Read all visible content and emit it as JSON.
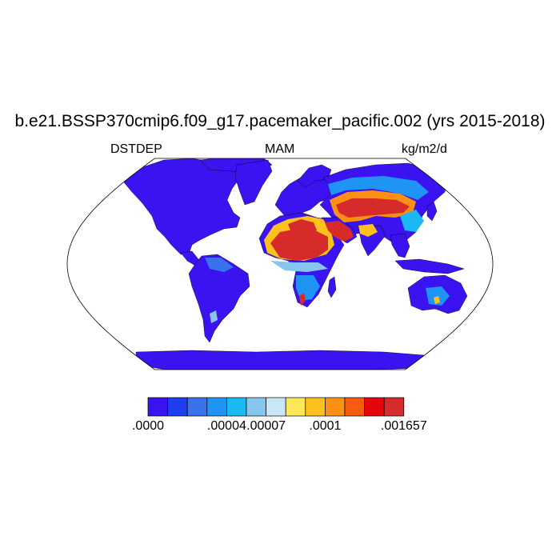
{
  "title": "b.e21.BSSP370cmip6.f09_g17.pacemaker_pacific.002 (yrs 2015-2018)",
  "left_label": "DSTDEP",
  "center_label": "MAM",
  "units": "kg/m2/d",
  "colors": {
    "ocean": "#ffffff",
    "land_low": "#3b12f0",
    "outline": "#000000"
  },
  "colorbar": {
    "colors": [
      "#3b12f0",
      "#1f3ef0",
      "#3a71ec",
      "#1e94f5",
      "#1ab9f3",
      "#86c6ee",
      "#c9e6f6",
      "#fde85a",
      "#fdc11d",
      "#fc9012",
      "#f85a10",
      "#e4060a",
      "#d72a2a"
    ],
    "labels": [
      {
        "text": ".0000",
        "index": 0
      },
      {
        "text": ".00004",
        "index": 4
      },
      {
        "text": ".00007",
        "index": 6
      },
      {
        "text": ".0001",
        "index": 9
      },
      {
        "text": ".001657",
        "index": 13
      }
    ]
  }
}
